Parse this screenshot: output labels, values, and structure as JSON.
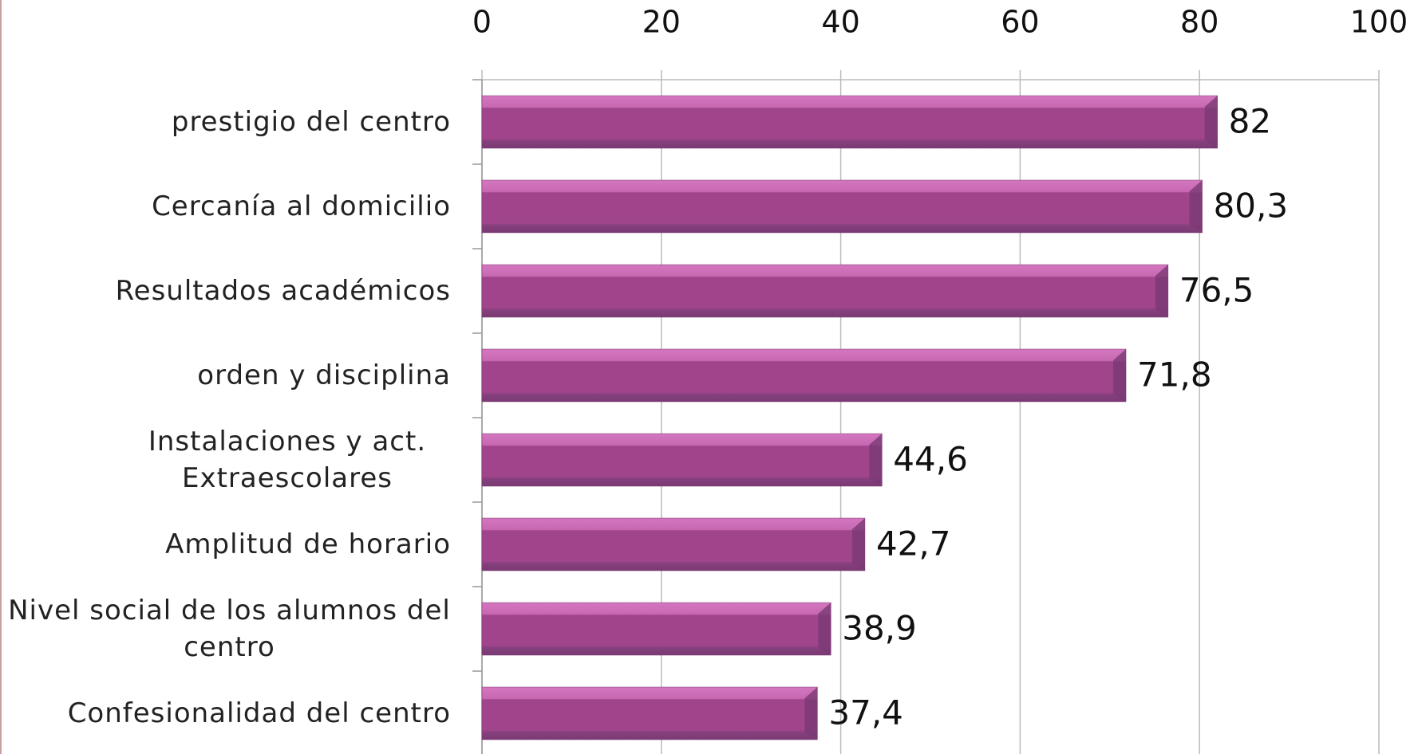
{
  "chart_data": {
    "type": "bar",
    "orientation": "horizontal",
    "categories": [
      "prestigio del centro",
      "Cercanía al domicilio",
      "Resultados académicos",
      "orden y disciplina",
      "Instalaciones y act. Extraescolares",
      "Amplitud de horario",
      "Nivel social de los alumnos del centro",
      "Confesionalidad del centro"
    ],
    "values": [
      82,
      80.3,
      76.5,
      71.8,
      44.6,
      42.7,
      38.9,
      37.4
    ],
    "value_labels": [
      "82",
      "80,3",
      "76,5",
      "71,8",
      "44,6",
      "42,7",
      "38,9",
      "37,4"
    ],
    "color": "#a0448c",
    "xlim": [
      0,
      100
    ],
    "xticks": [
      0,
      20,
      40,
      60,
      80,
      100
    ],
    "grid": true
  }
}
